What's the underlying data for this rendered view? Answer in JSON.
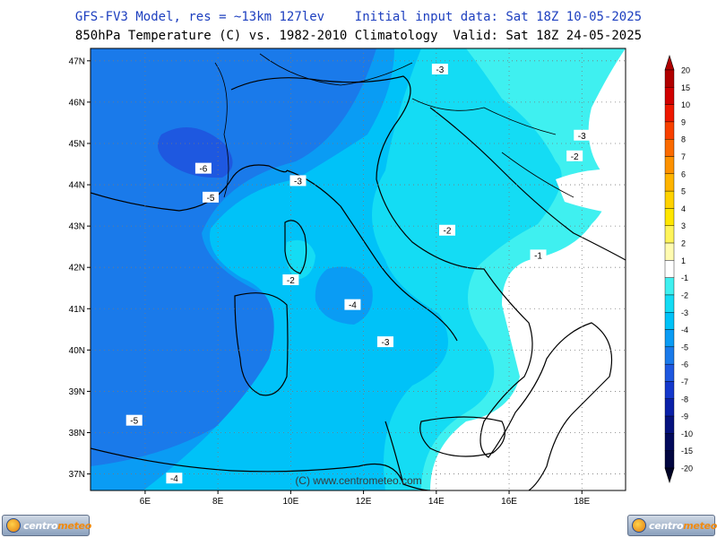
{
  "header": {
    "line1": "GFS-FV3 Model, res = ~13km 127lev    Initial input data: Sat 18Z 10-05-2025",
    "line2": "850hPa Temperature (C) vs. 1982-2010 Climatology  Valid: Sat 18Z 24-05-2025"
  },
  "map": {
    "lat_labels": [
      "47N",
      "46N",
      "45N",
      "44N",
      "43N",
      "42N",
      "41N",
      "40N",
      "39N",
      "38N",
      "37N"
    ],
    "lon_labels": [
      "6E",
      "8E",
      "10E",
      "12E",
      "14E",
      "16E",
      "18E"
    ],
    "contour_labels": [
      {
        "text": "-3",
        "lon": 14.1,
        "lat": 46.8
      },
      {
        "text": "-3",
        "lon": 18.0,
        "lat": 45.2
      },
      {
        "text": "-2",
        "lon": 17.8,
        "lat": 44.7
      },
      {
        "text": "-6",
        "lon": 7.6,
        "lat": 44.4
      },
      {
        "text": "-5",
        "lon": 7.8,
        "lat": 43.7
      },
      {
        "text": "-3",
        "lon": 10.2,
        "lat": 44.1
      },
      {
        "text": "-2",
        "lon": 14.3,
        "lat": 42.9
      },
      {
        "text": "-1",
        "lon": 16.8,
        "lat": 42.3
      },
      {
        "text": "-2",
        "lon": 10.0,
        "lat": 41.7
      },
      {
        "text": "-4",
        "lon": 11.7,
        "lat": 41.1
      },
      {
        "text": "-3",
        "lon": 12.6,
        "lat": 40.2
      },
      {
        "text": "-5",
        "lon": 5.7,
        "lat": 38.3
      },
      {
        "text": "-4",
        "lon": 6.8,
        "lat": 36.9
      }
    ],
    "watermark": "(C) www.centrometeo.com"
  },
  "colorbar": {
    "labels": [
      "20",
      "15",
      "10",
      "9",
      "8",
      "7",
      "6",
      "5",
      "4",
      "3",
      "2",
      "1",
      "-1",
      "-2",
      "-3",
      "-4",
      "-5",
      "-6",
      "-7",
      "-8",
      "-9",
      "-10",
      "-15",
      "-20"
    ],
    "colors": [
      "#b00000",
      "#d00000",
      "#ee1800",
      "#f84000",
      "#fb6a00",
      "#fd9100",
      "#ffb400",
      "#ffd200",
      "#ffe600",
      "#fff45a",
      "#fffbb0",
      "#ffffff",
      "#3ff0f0",
      "#14dcf4",
      "#00c2f8",
      "#0a9cf4",
      "#1a7aea",
      "#1e58e0",
      "#1438cc",
      "#0a20a8",
      "#06127e",
      "#030a5c",
      "#020640",
      "#010326"
    ]
  },
  "logos": {
    "text_prefix": "centro",
    "text_suffix": "meteo"
  }
}
